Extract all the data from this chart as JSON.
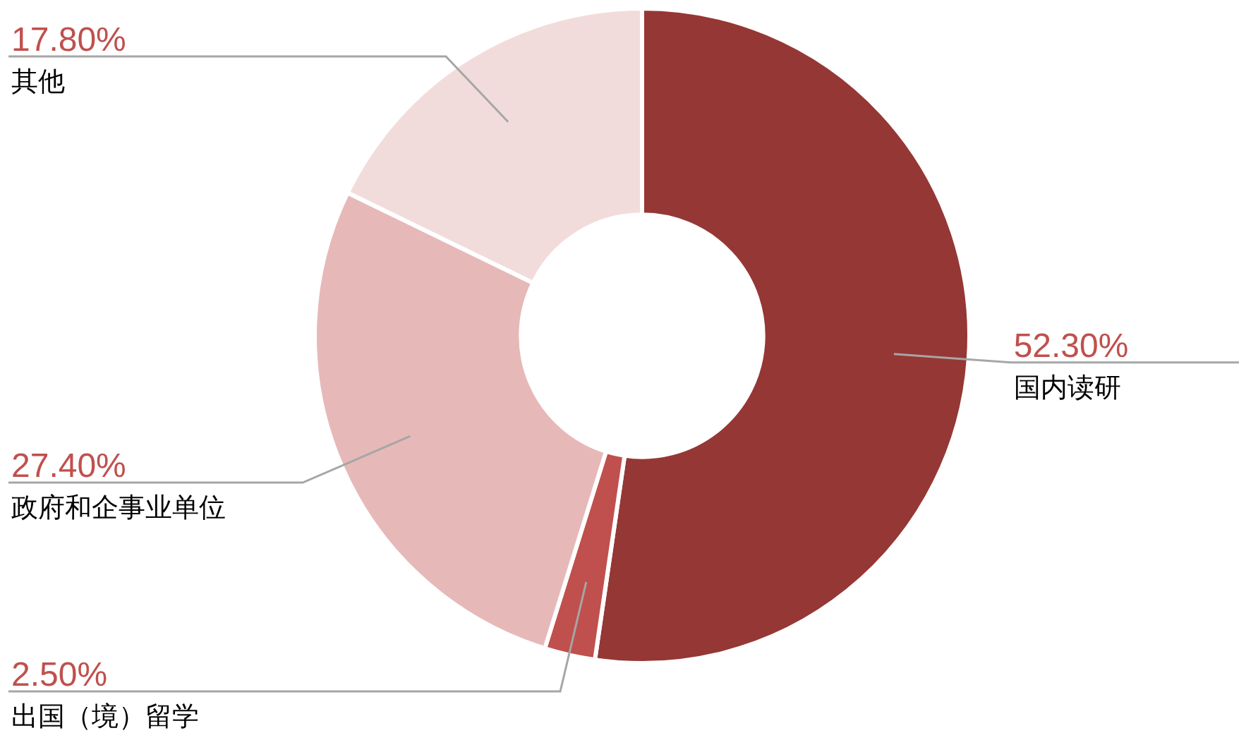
{
  "chart_data": {
    "type": "donut",
    "categories": [
      "国内读研",
      "出国（境）留学",
      "政府和企事业单位",
      "其他"
    ],
    "values": [
      52.3,
      2.5,
      27.4,
      17.8
    ],
    "value_labels": [
      "52.30%",
      "2.50%",
      "27.40%",
      "17.80%"
    ],
    "colors": [
      "#953735",
      "#c0504d",
      "#e6b9b8",
      "#f2dcdb"
    ]
  }
}
